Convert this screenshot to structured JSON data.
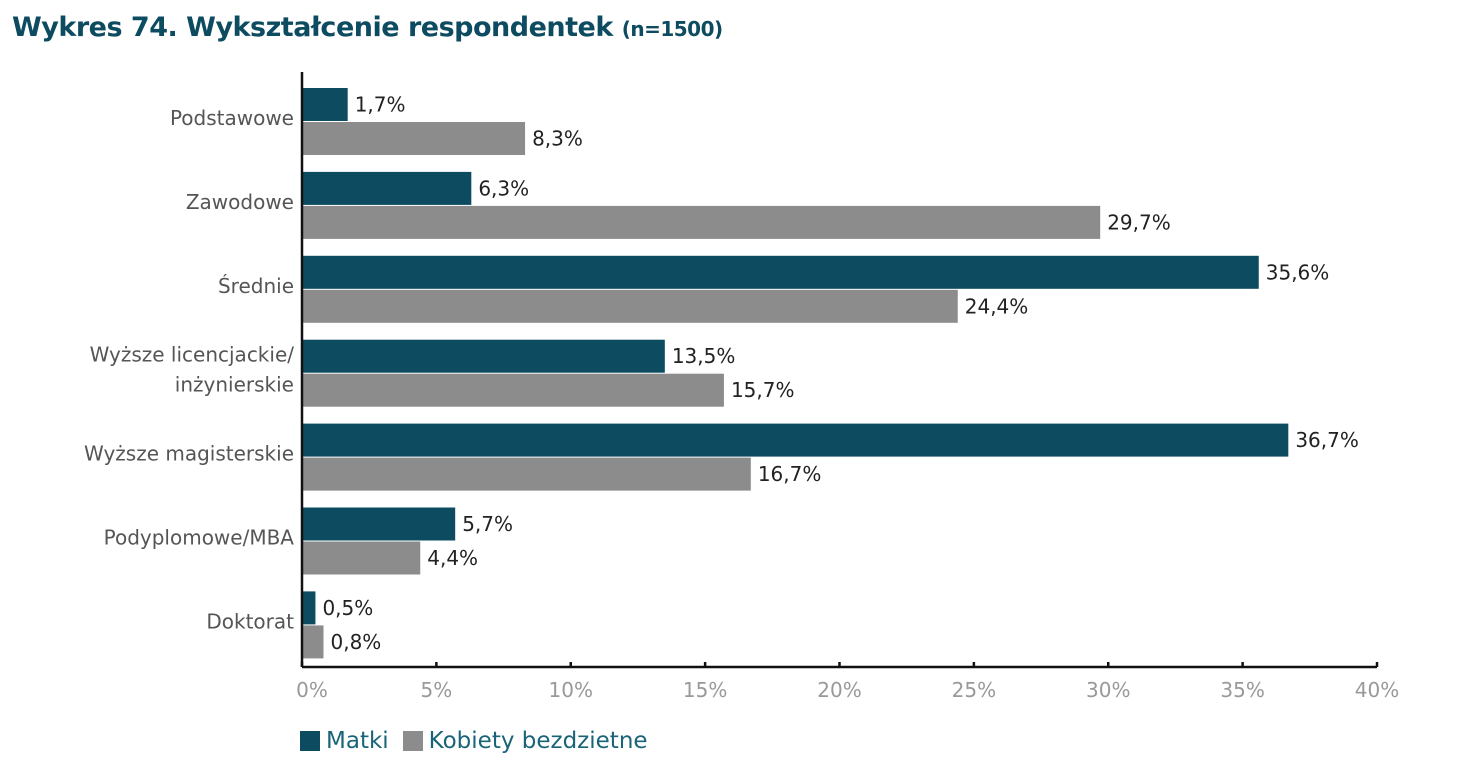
{
  "chart_data": {
    "type": "bar",
    "orientation": "horizontal",
    "title": "Wykres 74. Wykształcenie respondentek",
    "subtitle": "(n=1500)",
    "categories": [
      "Podstawowe",
      "Zawodowe",
      "Średnie",
      "Wyższe licencjackie/ inżynierskie",
      "Wyższe magisterskie",
      "Podyplomowe/MBA",
      "Doktorat"
    ],
    "category_lines": [
      [
        "Podstawowe"
      ],
      [
        "Zawodowe"
      ],
      [
        "Średnie"
      ],
      [
        "Wyższe licencjackie/",
        "inżynierskie"
      ],
      [
        "Wyższe magisterskie"
      ],
      [
        "Podyplomowe/MBA"
      ],
      [
        "Doktorat"
      ]
    ],
    "series": [
      {
        "name": "Matki",
        "color": "#0d4b60",
        "values": [
          1.7,
          6.3,
          35.6,
          13.5,
          36.7,
          5.7,
          0.5
        ],
        "labels": [
          "1,7%",
          "6,3%",
          "35,6%",
          "13,5%",
          "36,7%",
          "5,7%",
          "0,5%"
        ]
      },
      {
        "name": "Kobiety bezdzietne",
        "color": "#8c8c8c",
        "values": [
          8.3,
          29.7,
          24.4,
          15.7,
          16.7,
          4.4,
          0.8
        ],
        "labels": [
          "8,3%",
          "29,7%",
          "24,4%",
          "15,7%",
          "16,7%",
          "4,4%",
          "0,8%"
        ]
      }
    ],
    "xlim": [
      0,
      40
    ],
    "xticks": [
      "0%",
      "5%",
      "10%",
      "15%",
      "20%",
      "25%",
      "30%",
      "35%",
      "40%"
    ],
    "grid": false,
    "legend_position": "bottom-left"
  }
}
